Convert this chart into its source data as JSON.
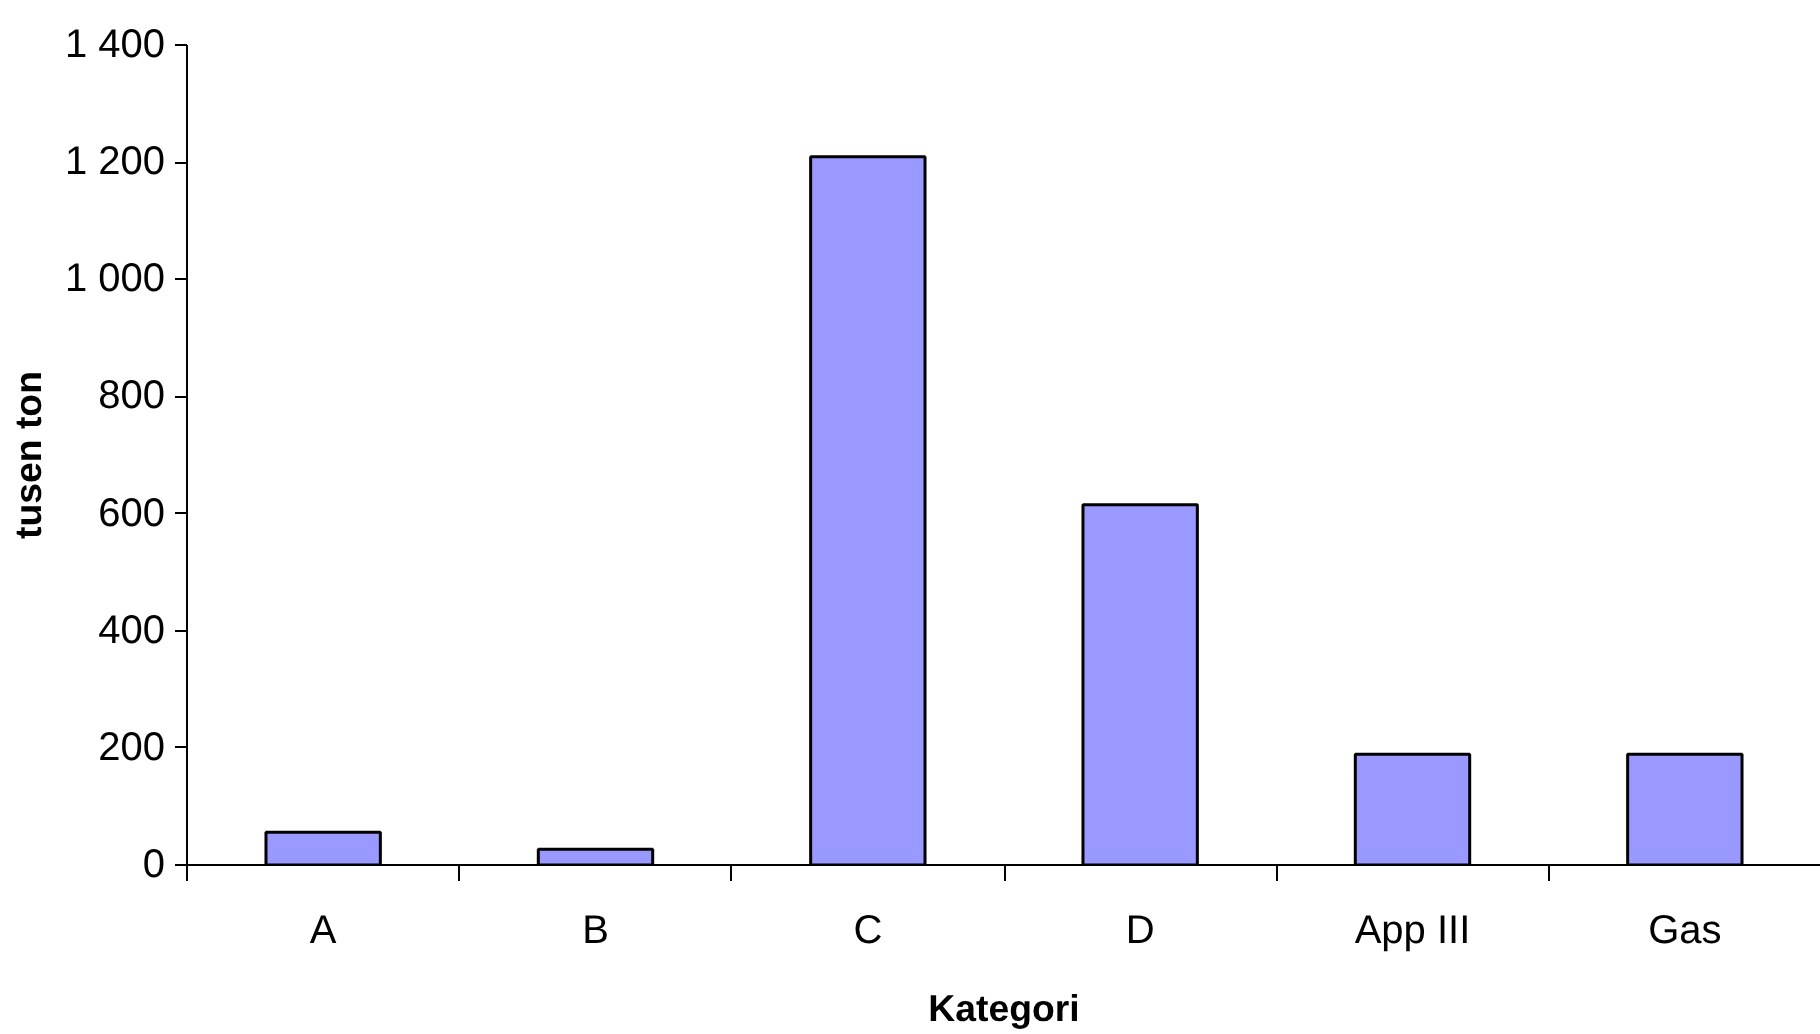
{
  "chart_data": {
    "type": "bar",
    "xlabel": "Kategori",
    "ylabel": "tusen ton",
    "categories": [
      "A",
      "B",
      "C",
      "D",
      "App III",
      "Gas"
    ],
    "values": [
      56,
      27,
      1209,
      615,
      189,
      189
    ],
    "color": "#9999ff",
    "ylim": [
      0,
      1400
    ],
    "yticks": [
      0,
      200,
      400,
      600,
      800,
      {
        "value": 1000,
        "label": "1 000"
      },
      {
        "value": 1200,
        "label": "1 200"
      },
      {
        "value": 1400,
        "label": "1 400"
      }
    ],
    "grid": false
  }
}
